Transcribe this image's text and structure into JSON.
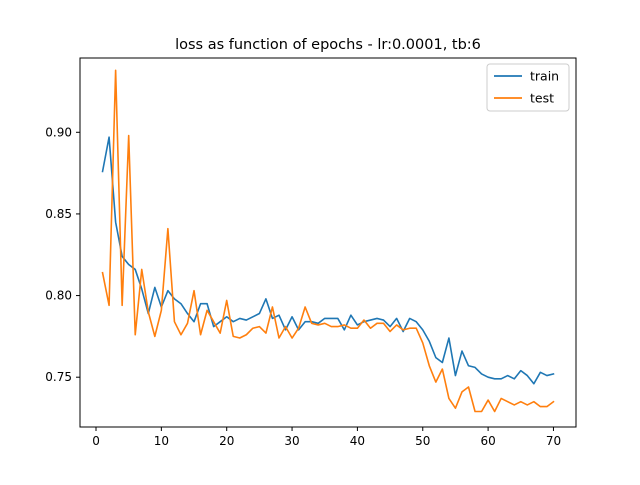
{
  "chart_data": {
    "type": "line",
    "title": "loss as function of epochs - lr:0.0001, tb:6",
    "xlabel": "",
    "ylabel": "",
    "xlim": [
      -2.45,
      73.45
    ],
    "ylim": [
      0.7195,
      0.9455
    ],
    "xticks": [
      0,
      10,
      20,
      30,
      40,
      50,
      60,
      70
    ],
    "yticks": [
      0.75,
      0.8,
      0.85,
      0.9
    ],
    "ytick_labels": [
      "0.75",
      "0.80",
      "0.85",
      "0.90"
    ],
    "grid": false,
    "legend_position": "top-right",
    "x": [
      1,
      2,
      3,
      4,
      5,
      6,
      7,
      8,
      9,
      10,
      11,
      12,
      13,
      14,
      15,
      16,
      17,
      18,
      19,
      20,
      21,
      22,
      23,
      24,
      25,
      26,
      27,
      28,
      29,
      30,
      31,
      32,
      33,
      34,
      35,
      36,
      37,
      38,
      39,
      40,
      41,
      42,
      43,
      44,
      45,
      46,
      47,
      48,
      49,
      50,
      51,
      52,
      53,
      54,
      55,
      56,
      57,
      58,
      59,
      60,
      61,
      62,
      63,
      64,
      65,
      66,
      67,
      68,
      69,
      70
    ],
    "series": [
      {
        "name": "train",
        "color": "#1f77b4",
        "values": [
          0.876,
          0.897,
          0.845,
          0.824,
          0.819,
          0.816,
          0.804,
          0.789,
          0.805,
          0.793,
          0.803,
          0.798,
          0.795,
          0.789,
          0.784,
          0.795,
          0.795,
          0.781,
          0.784,
          0.787,
          0.784,
          0.786,
          0.785,
          0.787,
          0.789,
          0.798,
          0.786,
          0.788,
          0.779,
          0.787,
          0.779,
          0.784,
          0.784,
          0.783,
          0.786,
          0.786,
          0.786,
          0.779,
          0.788,
          0.782,
          0.784,
          0.785,
          0.786,
          0.785,
          0.781,
          0.786,
          0.778,
          0.786,
          0.784,
          0.779,
          0.772,
          0.762,
          0.759,
          0.774,
          0.751,
          0.766,
          0.757,
          0.756,
          0.752,
          0.75,
          0.749,
          0.749,
          0.751,
          0.749,
          0.754,
          0.751,
          0.746,
          0.753,
          0.751,
          0.752
        ]
      },
      {
        "name": "test",
        "color": "#ff7f0e",
        "values": [
          0.814,
          0.794,
          0.938,
          0.794,
          0.898,
          0.776,
          0.816,
          0.79,
          0.775,
          0.791,
          0.841,
          0.784,
          0.776,
          0.783,
          0.803,
          0.776,
          0.791,
          0.784,
          0.777,
          0.797,
          0.775,
          0.774,
          0.776,
          0.78,
          0.781,
          0.777,
          0.793,
          0.774,
          0.781,
          0.774,
          0.78,
          0.793,
          0.783,
          0.782,
          0.783,
          0.781,
          0.781,
          0.782,
          0.78,
          0.78,
          0.785,
          0.78,
          0.783,
          0.783,
          0.778,
          0.782,
          0.779,
          0.78,
          0.78,
          0.771,
          0.757,
          0.747,
          0.755,
          0.737,
          0.731,
          0.741,
          0.744,
          0.729,
          0.729,
          0.736,
          0.729,
          0.737,
          0.735,
          0.733,
          0.735,
          0.733,
          0.735,
          0.732,
          0.732,
          0.735
        ]
      }
    ]
  }
}
